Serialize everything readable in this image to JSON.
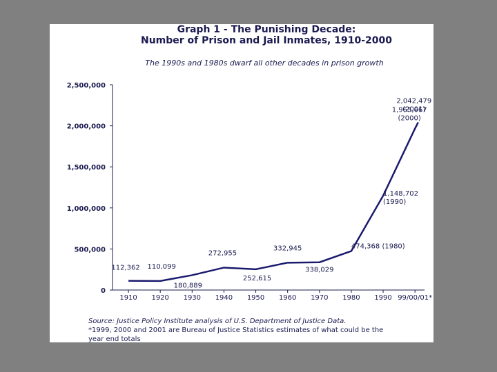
{
  "chart_data": {
    "type": "line",
    "title": "Graph 1 - The Punishing Decade:",
    "title_line2": "Number of Prison and Jail Inmates, 1910-2000",
    "subtitle": "The 1990s and 1980s dwarf all other decades in prison growth",
    "x": [
      1910,
      1920,
      1930,
      1940,
      1950,
      1960,
      1970,
      1980,
      1990,
      2000,
      2001
    ],
    "series": [
      {
        "name": "Prison and Jail Inmates",
        "color": "#1a1a6e",
        "values": [
          112362,
          110099,
          180889,
          272955,
          252615,
          332945,
          338029,
          474368,
          1148702,
          1965667,
          2042479
        ],
        "value_labels": [
          "112,362",
          "110,099",
          "180,889",
          "272,955",
          "252,615",
          "332,945",
          "338,029",
          "474,368 (1980)",
          "1,148,702 (1990)",
          "1,965,667 (2000)",
          "2,042,479 (2001)"
        ]
      }
    ],
    "xlim": [
      1905,
      2003
    ],
    "xticks": [
      1910,
      1920,
      1930,
      1940,
      1950,
      1960,
      1970,
      1980,
      1990,
      {
        "value": 2000,
        "label": "99/00/01*"
      }
    ],
    "ylim": [
      0,
      2500000
    ],
    "yticks": [
      0,
      {
        "value": 500000,
        "label": "500,000"
      },
      {
        "value": 1000000,
        "label": "1,000,000"
      },
      {
        "value": 1500000,
        "label": "1,500,000"
      },
      {
        "value": 2000000,
        "label": "2,000,000"
      },
      {
        "value": 2500000,
        "label": "2,500,000"
      }
    ],
    "grid": false,
    "source": "Source:  Justice Policy Institute analysis of U.S. Department of Justice Data.",
    "footnote_line1": "*1999, 2000 and 2001 are Bureau of Justice Statistics estimates of what could be the",
    "footnote_line2": "year end totals"
  }
}
